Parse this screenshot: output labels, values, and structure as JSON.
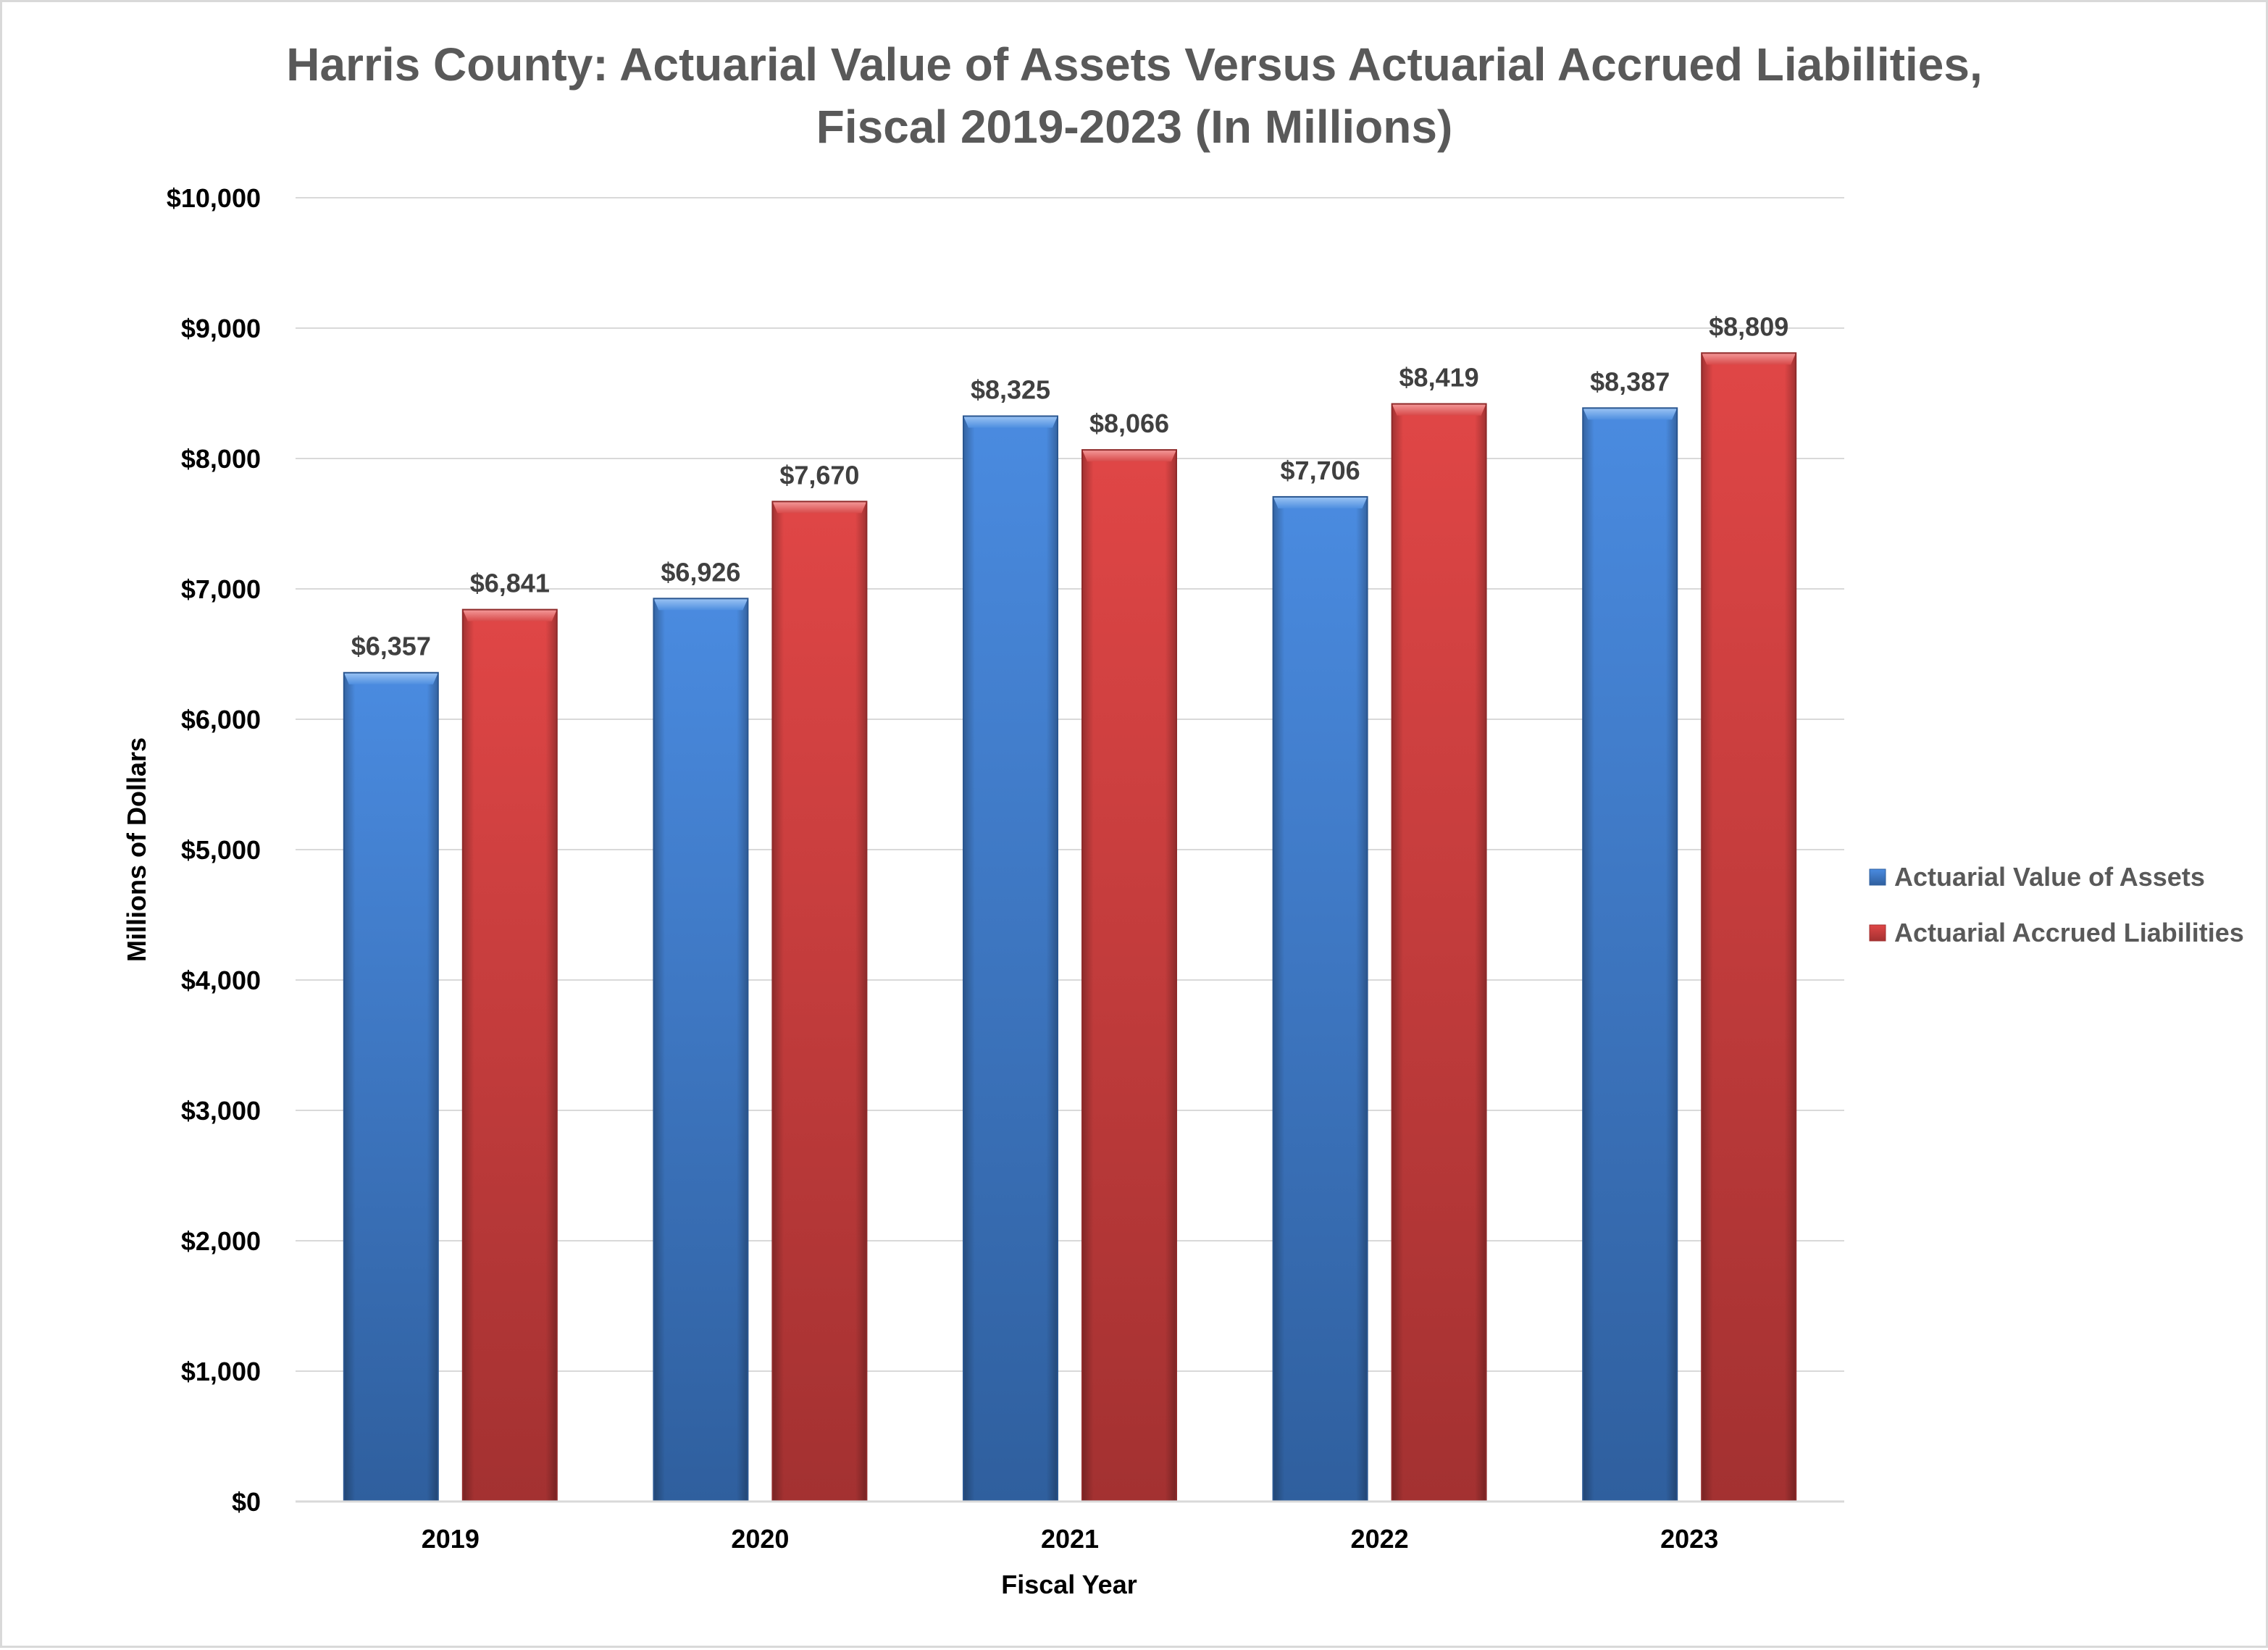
{
  "chart_data": {
    "type": "bar",
    "title": "Harris County: Actuarial Value of Assets Versus Actuarial Accrued Liabilities,",
    "subtitle": "Fiscal 2019-2023 (In Millions)",
    "xlabel": "Fiscal Year",
    "ylabel": "Millions of Dollars",
    "categories": [
      "2019",
      "2020",
      "2021",
      "2022",
      "2023"
    ],
    "series": [
      {
        "name": "Actuarial Value of Assets",
        "color": "#3f7fd6",
        "values": [
          6357,
          6926,
          8325,
          7706,
          8387
        ],
        "labels": [
          "$6,357",
          "$6,926",
          "$8,325",
          "$7,706",
          "$8,387"
        ]
      },
      {
        "name": "Actuarial Accrued Liabilities",
        "color": "#d64040",
        "values": [
          6841,
          7670,
          8066,
          8419,
          8809
        ],
        "labels": [
          "$6,841",
          "$7,670",
          "$8,066",
          "$8,419",
          "$8,809"
        ]
      }
    ],
    "ylim": [
      0,
      10000
    ],
    "yticks": [
      0,
      1000,
      2000,
      3000,
      4000,
      5000,
      6000,
      7000,
      8000,
      9000,
      10000
    ],
    "ytick_labels": [
      "$0",
      "$1,000",
      "$2,000",
      "$3,000",
      "$4,000",
      "$5,000",
      "$6,000",
      "$7,000",
      "$8,000",
      "$9,000",
      "$10,000"
    ],
    "grid": true,
    "legend": "right"
  }
}
